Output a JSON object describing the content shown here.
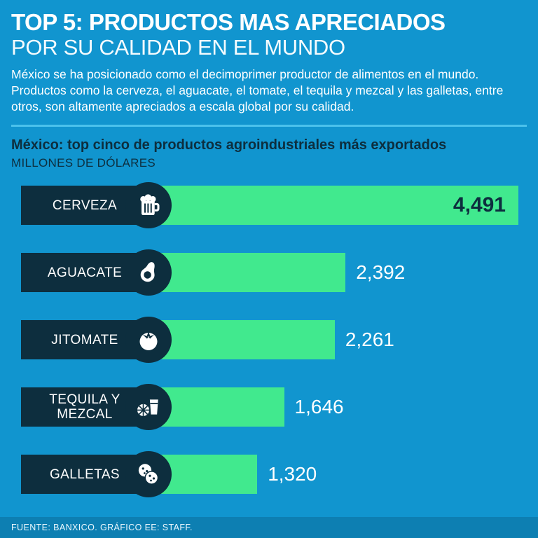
{
  "header": {
    "title_line1": "TOP 5: PRODUCTOS MAS APRECIADOS",
    "title_line2": "POR SU CALIDAD EN EL MUNDO",
    "intro": "México se ha posicionado como el decimoprimer productor de alimentos en el mundo. Productos como la cerveza, el aguacate, el tomate, el tequila y mezcal y las galletas, entre otros, son altamente apreciados a escala global por su calidad."
  },
  "chart_data": {
    "type": "bar",
    "orientation": "horizontal",
    "title": "México: top cinco de productos agroindustriales más exportados",
    "unit_label": "MILLONES DE DÓLARES",
    "categories": [
      "CERVEZA",
      "AGUACATE",
      "JITOMATE",
      "TEQUILA Y MEZCAL",
      "GALLETAS"
    ],
    "values": [
      4491,
      2392,
      2261,
      1646,
      1320
    ],
    "value_labels": [
      "4,491",
      "2,392",
      "2,261",
      "1,646",
      "1,320"
    ],
    "icons": [
      "beer-mug-icon",
      "avocado-icon",
      "tomato-icon",
      "tequila-lime-icon",
      "cookies-icon"
    ],
    "xlim": [
      0,
      4491
    ],
    "legend": "none",
    "grid": "off",
    "bar_color": "#41e98e",
    "label_box_color": "#0d2e3e",
    "value_inside_color": "#0d2e3e",
    "value_outside_color": "#ffffff"
  },
  "footer": {
    "source": "FUENTE: BANXICO. GRÁFICO EE: STAFF."
  },
  "colors": {
    "background": "#1195cf",
    "divider": "#4cc2ec",
    "footer_bar": "#0d7fb2",
    "dark_navy": "#0d2e3e",
    "bar_green": "#41e98e"
  }
}
